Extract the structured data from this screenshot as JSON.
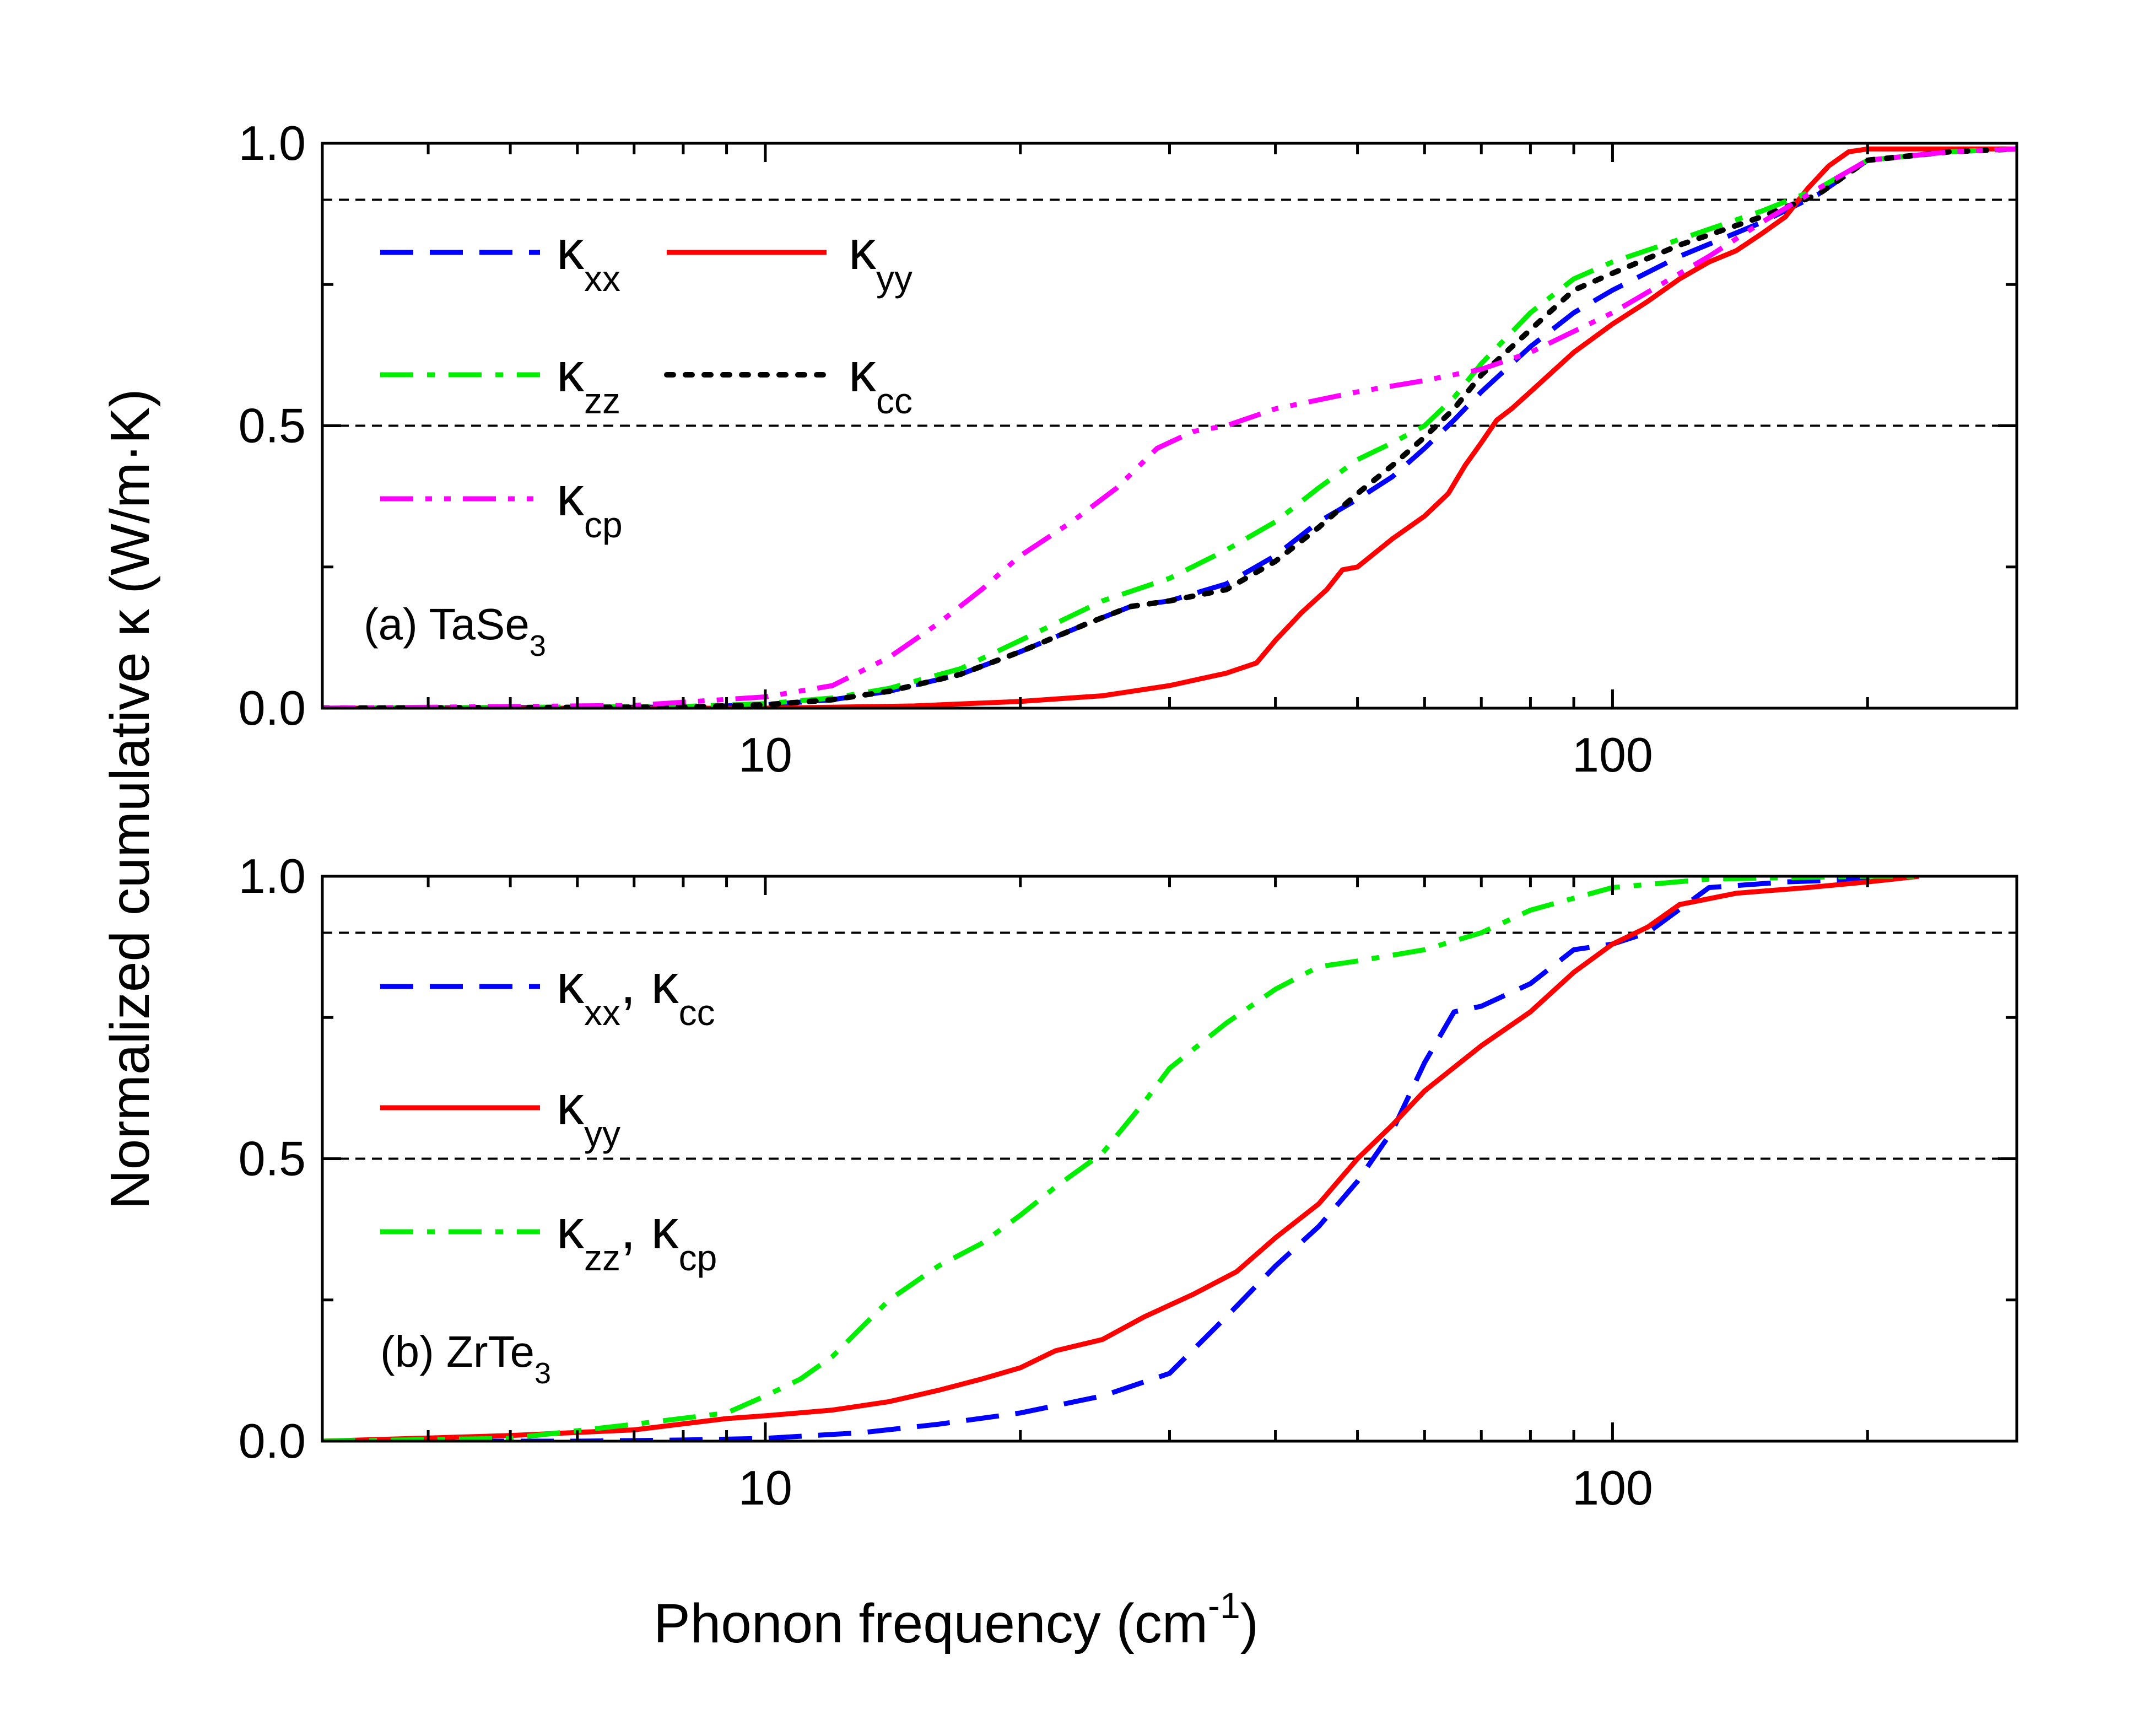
{
  "figure": {
    "y_axis_title_pre": "Normalized cumulative ",
    "y_axis_title_kappa": "κ",
    "y_axis_title_post": " (W/m·K)",
    "x_axis_title_main": "Phonon frequency (cm",
    "x_axis_title_sup": "-1",
    "x_axis_title_end": ")"
  },
  "chart_data": [
    {
      "type": "line",
      "id": "panel-a",
      "panel_label": "(a) TaSe",
      "panel_label_sub": "3",
      "xscale": "log",
      "xlim": [
        3,
        300
      ],
      "ylim": [
        0,
        1
      ],
      "xticks": [
        10,
        100
      ],
      "xtick_labels": [
        "10",
        "100"
      ],
      "yticks": [
        0,
        0.5,
        1
      ],
      "ytick_labels": [
        "0.0",
        "0.5",
        "1.0"
      ],
      "reference_lines": [
        0.5,
        0.9
      ],
      "series": [
        {
          "name": "κxx",
          "base": "κ",
          "sub": "xx",
          "color": "#0000ff",
          "dash": "dash",
          "x": [
            3,
            8,
            10,
            12,
            14,
            17,
            20,
            24,
            27,
            30,
            35,
            40,
            45,
            50,
            55,
            60,
            65,
            70,
            80,
            90,
            100,
            120,
            150,
            175,
            200,
            250,
            300
          ],
          "y": [
            0,
            0.002,
            0.006,
            0.015,
            0.03,
            0.06,
            0.1,
            0.15,
            0.18,
            0.19,
            0.22,
            0.27,
            0.33,
            0.37,
            0.41,
            0.46,
            0.51,
            0.56,
            0.64,
            0.7,
            0.74,
            0.8,
            0.86,
            0.91,
            0.97,
            0.985,
            0.99
          ]
        },
        {
          "name": "κyy",
          "base": "κ",
          "sub": "yy",
          "color": "#ff0000",
          "dash": "solid",
          "x": [
            3,
            10,
            15,
            20,
            25,
            30,
            35,
            38,
            40,
            43,
            46,
            48,
            50,
            55,
            60,
            64,
            67,
            70,
            73,
            76,
            80,
            90,
            100,
            110,
            120,
            130,
            140,
            150,
            160,
            170,
            180,
            190,
            200,
            250,
            300
          ],
          "y": [
            0,
            0,
            0.004,
            0.012,
            0.022,
            0.04,
            0.062,
            0.08,
            0.12,
            0.17,
            0.21,
            0.245,
            0.25,
            0.3,
            0.34,
            0.38,
            0.43,
            0.47,
            0.51,
            0.53,
            0.56,
            0.63,
            0.68,
            0.72,
            0.76,
            0.79,
            0.81,
            0.84,
            0.87,
            0.92,
            0.96,
            0.985,
            0.99,
            0.99,
            0.99
          ]
        },
        {
          "name": "κzz",
          "base": "κ",
          "sub": "zz",
          "color": "#00ee00",
          "dash": "dashdot",
          "x": [
            3,
            8,
            10,
            12,
            14,
            17,
            20,
            25,
            30,
            35,
            40,
            45,
            50,
            55,
            60,
            65,
            70,
            80,
            90,
            100,
            120,
            150,
            175,
            200,
            250,
            300
          ],
          "y": [
            0,
            0.003,
            0.008,
            0.018,
            0.035,
            0.07,
            0.12,
            0.19,
            0.23,
            0.28,
            0.33,
            0.39,
            0.44,
            0.47,
            0.5,
            0.55,
            0.61,
            0.7,
            0.76,
            0.79,
            0.83,
            0.88,
            0.92,
            0.97,
            0.985,
            0.99
          ]
        },
        {
          "name": "κcc",
          "base": "κ",
          "sub": "cc",
          "color": "#000000",
          "dash": "dot",
          "x": [
            3,
            8,
            10,
            12,
            14,
            17,
            20,
            24,
            27,
            30,
            35,
            40,
            45,
            50,
            55,
            60,
            65,
            70,
            80,
            90,
            100,
            120,
            150,
            175,
            200,
            250,
            300
          ],
          "y": [
            0,
            0.002,
            0.006,
            0.015,
            0.03,
            0.06,
            0.1,
            0.15,
            0.18,
            0.19,
            0.21,
            0.26,
            0.32,
            0.38,
            0.43,
            0.48,
            0.53,
            0.59,
            0.67,
            0.74,
            0.77,
            0.82,
            0.87,
            0.91,
            0.97,
            0.985,
            0.99
          ]
        },
        {
          "name": "κcp",
          "base": "κ",
          "sub": "cp",
          "color": "#ff00ff",
          "dash": "dashdotdot",
          "x": [
            3,
            7,
            10,
            12,
            14,
            16,
            18,
            20,
            23,
            26,
            29,
            32,
            35,
            40,
            50,
            60,
            70,
            80,
            100,
            130,
            150,
            175,
            200,
            250,
            300
          ],
          "y": [
            0,
            0.005,
            0.02,
            0.04,
            0.09,
            0.15,
            0.21,
            0.27,
            0.33,
            0.39,
            0.46,
            0.49,
            0.5,
            0.53,
            0.56,
            0.58,
            0.6,
            0.63,
            0.7,
            0.8,
            0.86,
            0.92,
            0.97,
            0.985,
            0.99
          ]
        }
      ]
    },
    {
      "type": "line",
      "id": "panel-b",
      "panel_label": "(b) ZrTe",
      "panel_label_sub": "3",
      "xscale": "log",
      "xlim": [
        3,
        300
      ],
      "ylim": [
        0,
        1
      ],
      "xticks": [
        10,
        100
      ],
      "xtick_labels": [
        "10",
        "100"
      ],
      "yticks": [
        0,
        0.5,
        1
      ],
      "ytick_labels": [
        "0.0",
        "0.5",
        "1.0"
      ],
      "reference_lines": [
        0.5,
        0.9
      ],
      "series": [
        {
          "name": "κxx, κcc",
          "base": "κ",
          "sub": "xx",
          "base2": "κ",
          "sub2": "cc",
          "color": "#0000ff",
          "dash": "dash",
          "x": [
            3,
            6,
            8,
            10,
            13,
            16,
            20,
            25,
            30,
            35,
            40,
            45,
            50,
            55,
            60,
            65,
            70,
            80,
            90,
            100,
            110,
            130,
            160,
            200,
            230
          ],
          "y": [
            0,
            0,
            0.002,
            0.005,
            0.015,
            0.03,
            0.05,
            0.08,
            0.12,
            0.22,
            0.31,
            0.38,
            0.46,
            0.55,
            0.67,
            0.76,
            0.77,
            0.81,
            0.87,
            0.88,
            0.9,
            0.98,
            0.99,
            0.995,
            1.0
          ]
        },
        {
          "name": "κyy",
          "base": "κ",
          "sub": "yy",
          "color": "#ff0000",
          "dash": "solid",
          "x": [
            3,
            5,
            7,
            9,
            10,
            12,
            14,
            16,
            18,
            20,
            22,
            25,
            28,
            32,
            36,
            40,
            45,
            50,
            55,
            60,
            70,
            80,
            90,
            100,
            110,
            120,
            140,
            170,
            200,
            230
          ],
          "y": [
            0,
            0.01,
            0.02,
            0.04,
            0.045,
            0.055,
            0.07,
            0.09,
            0.11,
            0.13,
            0.16,
            0.18,
            0.22,
            0.26,
            0.3,
            0.36,
            0.42,
            0.5,
            0.56,
            0.62,
            0.7,
            0.76,
            0.83,
            0.88,
            0.91,
            0.95,
            0.97,
            0.98,
            0.99,
            1.0
          ]
        },
        {
          "name": "κzz, κcp",
          "base": "κ",
          "sub": "zz",
          "base2": "κ",
          "sub2": "cp",
          "color": "#00ee00",
          "dash": "dashdot",
          "x": [
            3,
            5,
            7,
            9,
            10,
            11,
            12,
            14,
            16,
            18,
            20,
            22,
            25,
            28,
            30,
            35,
            40,
            45,
            50,
            60,
            70,
            80,
            100,
            130,
            200,
            230
          ],
          "y": [
            0,
            0.005,
            0.03,
            0.05,
            0.08,
            0.11,
            0.15,
            0.25,
            0.31,
            0.35,
            0.4,
            0.45,
            0.51,
            0.6,
            0.66,
            0.74,
            0.8,
            0.84,
            0.85,
            0.87,
            0.9,
            0.94,
            0.98,
            0.995,
            1.0,
            1.0
          ]
        }
      ]
    }
  ]
}
